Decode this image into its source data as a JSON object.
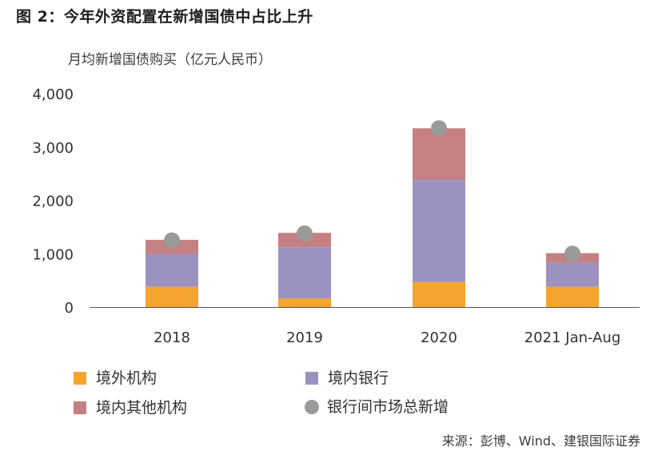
{
  "title": "图 2：今年外资配置在新增国债中占比上升",
  "ylabel": "月均新增国债购买（亿元人民币）",
  "source": "来源：彭博、Wind、建银国际证券",
  "colors": {
    "foreign": "#F5A42E",
    "domestic_banks": "#9C92C2",
    "other_domestic": "#C48082",
    "interbank_total": "#9A9A9A",
    "axis": "#555555"
  },
  "chart_data": {
    "type": "bar",
    "stacked": true,
    "categories": [
      "2018",
      "2019",
      "2020",
      "2021 Jan-Aug"
    ],
    "series": [
      {
        "name": "境外机构",
        "key": "foreign",
        "values": [
          380,
          160,
          470,
          380
        ]
      },
      {
        "name": "境内银行",
        "key": "domestic_banks",
        "values": [
          610,
          960,
          1910,
          450
        ]
      },
      {
        "name": "境内其他机构",
        "key": "other_domestic",
        "values": [
          270,
          270,
          970,
          180
        ]
      }
    ],
    "markers": {
      "name": "银行间市场总新增",
      "key": "interbank_total",
      "values": [
        1250,
        1380,
        3350,
        1000
      ]
    },
    "yticks": [
      "4,000",
      "3,000",
      "2,000",
      "1,000",
      "0"
    ],
    "ylim": [
      0,
      4000
    ]
  },
  "legend": {
    "items": [
      {
        "label": "境外机构",
        "shape": "square",
        "key": "foreign"
      },
      {
        "label": "境内银行",
        "shape": "square",
        "key": "domestic_banks"
      },
      {
        "label": "境内其他机构",
        "shape": "square",
        "key": "other_domestic"
      },
      {
        "label": "银行间市场总新增",
        "shape": "circle",
        "key": "interbank_total"
      }
    ]
  }
}
